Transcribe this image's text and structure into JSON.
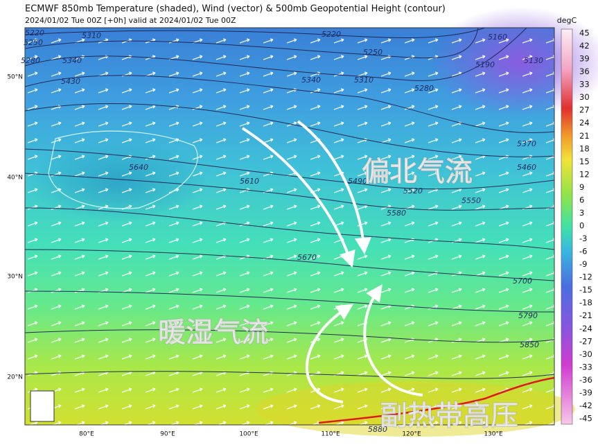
{
  "header": {
    "title": "ECMWF 850mb Temperature (shaded), Wind (vector) & 500mb Geopotential Height (contour)",
    "subtitle": "2024/01/02 Tue 00Z [+0h] valid at 2024/01/02 Tue 00Z"
  },
  "colorbar": {
    "unit": "degC",
    "labels": [
      "45",
      "42",
      "39",
      "36",
      "33",
      "30",
      "27",
      "24",
      "21",
      "18",
      "15",
      "12",
      "9",
      "6",
      "3",
      "0",
      "-3",
      "-6",
      "-9",
      "-12",
      "-15",
      "-18",
      "-21",
      "-24",
      "-27",
      "-30",
      "-33",
      "-36",
      "-39",
      "-42",
      "-45"
    ]
  },
  "axes": {
    "lat": [
      "50°N",
      "40°N",
      "30°N",
      "20°N"
    ],
    "lon": [
      "80°E",
      "90°E",
      "100°E",
      "110°E",
      "120°E",
      "130°E"
    ]
  },
  "contour_labels": [
    "5220",
    "5250",
    "5310",
    "5280",
    "5340",
    "5430",
    "5340",
    "5310",
    "5280",
    "5160",
    "5190",
    "5130",
    "5220",
    "5250",
    "5370",
    "5460",
    "5640",
    "5610",
    "5490",
    "5520",
    "5550",
    "5580",
    "5670",
    "5700",
    "5790",
    "5850",
    "5880"
  ],
  "annotations": [
    "偏北气流",
    "暖湿气流",
    "副热带高压"
  ]
}
